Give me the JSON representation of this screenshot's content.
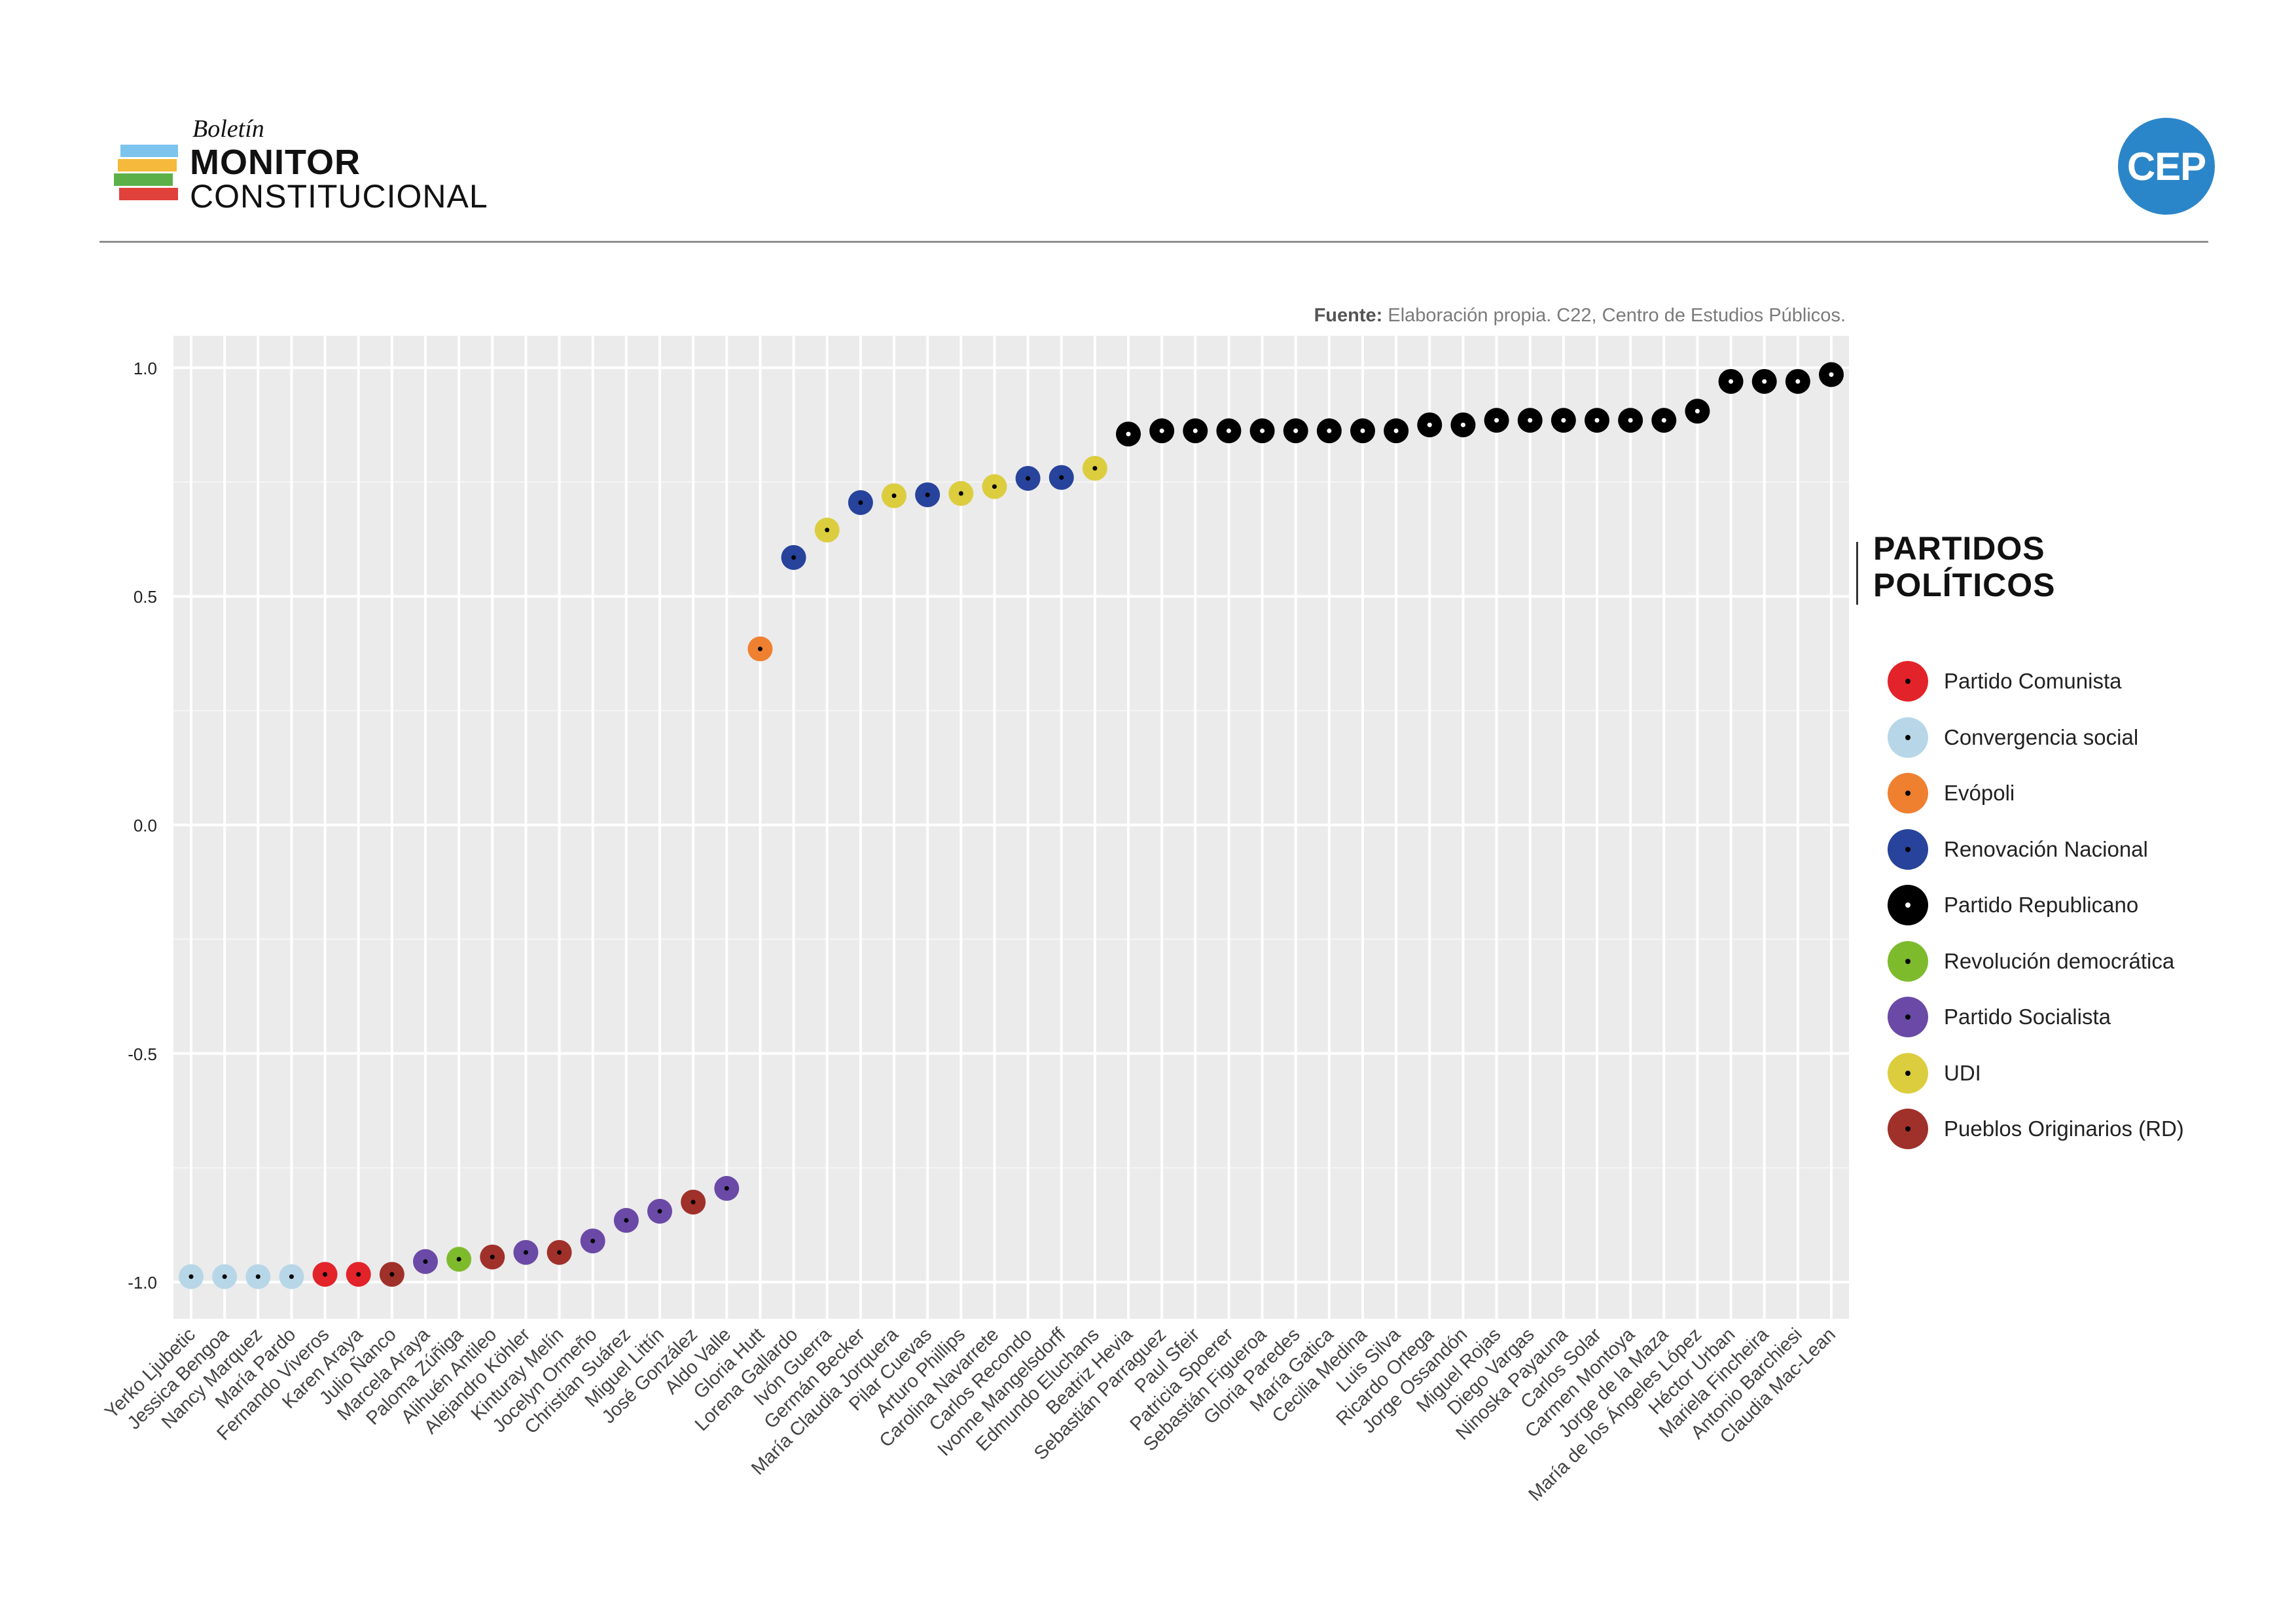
{
  "header": {
    "brand_boletin": "Boletín",
    "brand_monitor": "MONITOR",
    "brand_constitucional": "CONSTITUCIONAL",
    "brand_bar_colors": [
      "#7cc4ee",
      "#f5b93b",
      "#5bb04a",
      "#e0413a"
    ],
    "cep_logo": "CEP",
    "cep_color": "#2b86c9"
  },
  "source": {
    "label": "Fuente:",
    "text": " Elaboración propia. C22, Centro de Estudios Públicos."
  },
  "legend": {
    "title_line1": "PARTIDOS",
    "title_line2": "POLÍTICOS",
    "items": [
      {
        "label": "Partido Comunista",
        "color": "#e3232a"
      },
      {
        "label": "Convergencia social",
        "color": "#b7d7e8"
      },
      {
        "label": "Evópoli",
        "color": "#ef8030"
      },
      {
        "label": "Renovación Nacional",
        "color": "#27439b"
      },
      {
        "label": "Partido Republicano",
        "color": "#000000"
      },
      {
        "label": "Revolución democrática",
        "color": "#7dbb2d"
      },
      {
        "label": "Partido Socialista",
        "color": "#6a4aa6"
      },
      {
        "label": "UDI",
        "color": "#dccd3f"
      },
      {
        "label": "Pueblos Originarios (RD)",
        "color": "#a0302a"
      }
    ]
  },
  "chart_data": {
    "type": "scatter",
    "title": "",
    "xlabel": "",
    "ylabel": "",
    "ylim": [
      -1.08,
      1.07
    ],
    "yticks": [
      1.0,
      0.5,
      0.0,
      -0.5,
      -1.0
    ],
    "ytick_labels": [
      "1.0",
      "0.5",
      "0.0",
      "-0.5",
      "-1.0"
    ],
    "grid": true,
    "legend_position": "right",
    "categories": [
      "Yerko Ljubetic",
      "Jessica Bengoa",
      "Nancy Marquez",
      "María Pardo",
      "Fernando Viveros",
      "Karen Araya",
      "Julio Ñanco",
      "Marcela Araya",
      "Paloma Zúñiga",
      "Alihuén Antileo",
      "Alejandro Köhler",
      "Kinturay Melín",
      "Jocelyn Ormeño",
      "Christian Suárez",
      "Miguel Littín",
      "José González",
      "Aldo Valle",
      "Gloria Hutt",
      "Lorena Gallardo",
      "Ivón Guerra",
      "Germán Becker",
      "María Claudia Jorquera",
      "Pilar Cuevas",
      "Arturo Phillips",
      "Carolina Navarrete",
      "Carlos Recondo",
      "Ivonne Mangelsdorff",
      "Edmundo Eluchans",
      "Beatriz Hevia",
      "Sebastián Parraguez",
      "Paul Sfeir",
      "Patricia Spoerer",
      "Sebastián Figueroa",
      "Gloria Paredes",
      "María Gatica",
      "Cecilia Medina",
      "Luis Silva",
      "Ricardo Ortega",
      "Jorge Ossandón",
      "Miguel Rojas",
      "Diego Vargas",
      "Ninoska Payauna",
      "Carlos Solar",
      "Carmen Montoya",
      "Jorge de la Maza",
      "María de los Ángeles López",
      "Héctor Urban",
      "Mariela Fincheira",
      "Antonio Barchiesi",
      "Claudia Mac-Lean"
    ],
    "values": [
      -0.988,
      -0.988,
      -0.988,
      -0.988,
      -0.983,
      -0.983,
      -0.983,
      -0.955,
      -0.95,
      -0.945,
      -0.935,
      -0.935,
      -0.91,
      -0.865,
      -0.845,
      -0.825,
      -0.795,
      0.385,
      0.585,
      0.645,
      0.705,
      0.72,
      0.722,
      0.725,
      0.74,
      0.758,
      0.76,
      0.78,
      0.855,
      0.862,
      0.862,
      0.862,
      0.862,
      0.862,
      0.862,
      0.862,
      0.862,
      0.875,
      0.875,
      0.885,
      0.885,
      0.885,
      0.885,
      0.885,
      0.885,
      0.905,
      0.97,
      0.97,
      0.97,
      0.985
    ],
    "parties": [
      "Convergencia social",
      "Convergencia social",
      "Convergencia social",
      "Convergencia social",
      "Partido Comunista",
      "Partido Comunista",
      "Pueblos Originarios (RD)",
      "Partido Socialista",
      "Revolución democrática",
      "Pueblos Originarios (RD)",
      "Partido Socialista",
      "Pueblos Originarios (RD)",
      "Partido Socialista",
      "Partido Socialista",
      "Partido Socialista",
      "Pueblos Originarios (RD)",
      "Partido Socialista",
      "Evópoli",
      "Renovación Nacional",
      "UDI",
      "Renovación Nacional",
      "UDI",
      "Renovación Nacional",
      "UDI",
      "UDI",
      "Renovación Nacional",
      "Renovación Nacional",
      "UDI",
      "Partido Republicano",
      "Partido Republicano",
      "Partido Republicano",
      "Partido Republicano",
      "Partido Republicano",
      "Partido Republicano",
      "Partido Republicano",
      "Partido Republicano",
      "Partido Republicano",
      "Partido Republicano",
      "Partido Republicano",
      "Partido Republicano",
      "Partido Republicano",
      "Partido Republicano",
      "Partido Republicano",
      "Partido Republicano",
      "Partido Republicano",
      "Partido Republicano",
      "Partido Republicano",
      "Partido Republicano",
      "Partido Republicano",
      "Partido Republicano"
    ]
  }
}
